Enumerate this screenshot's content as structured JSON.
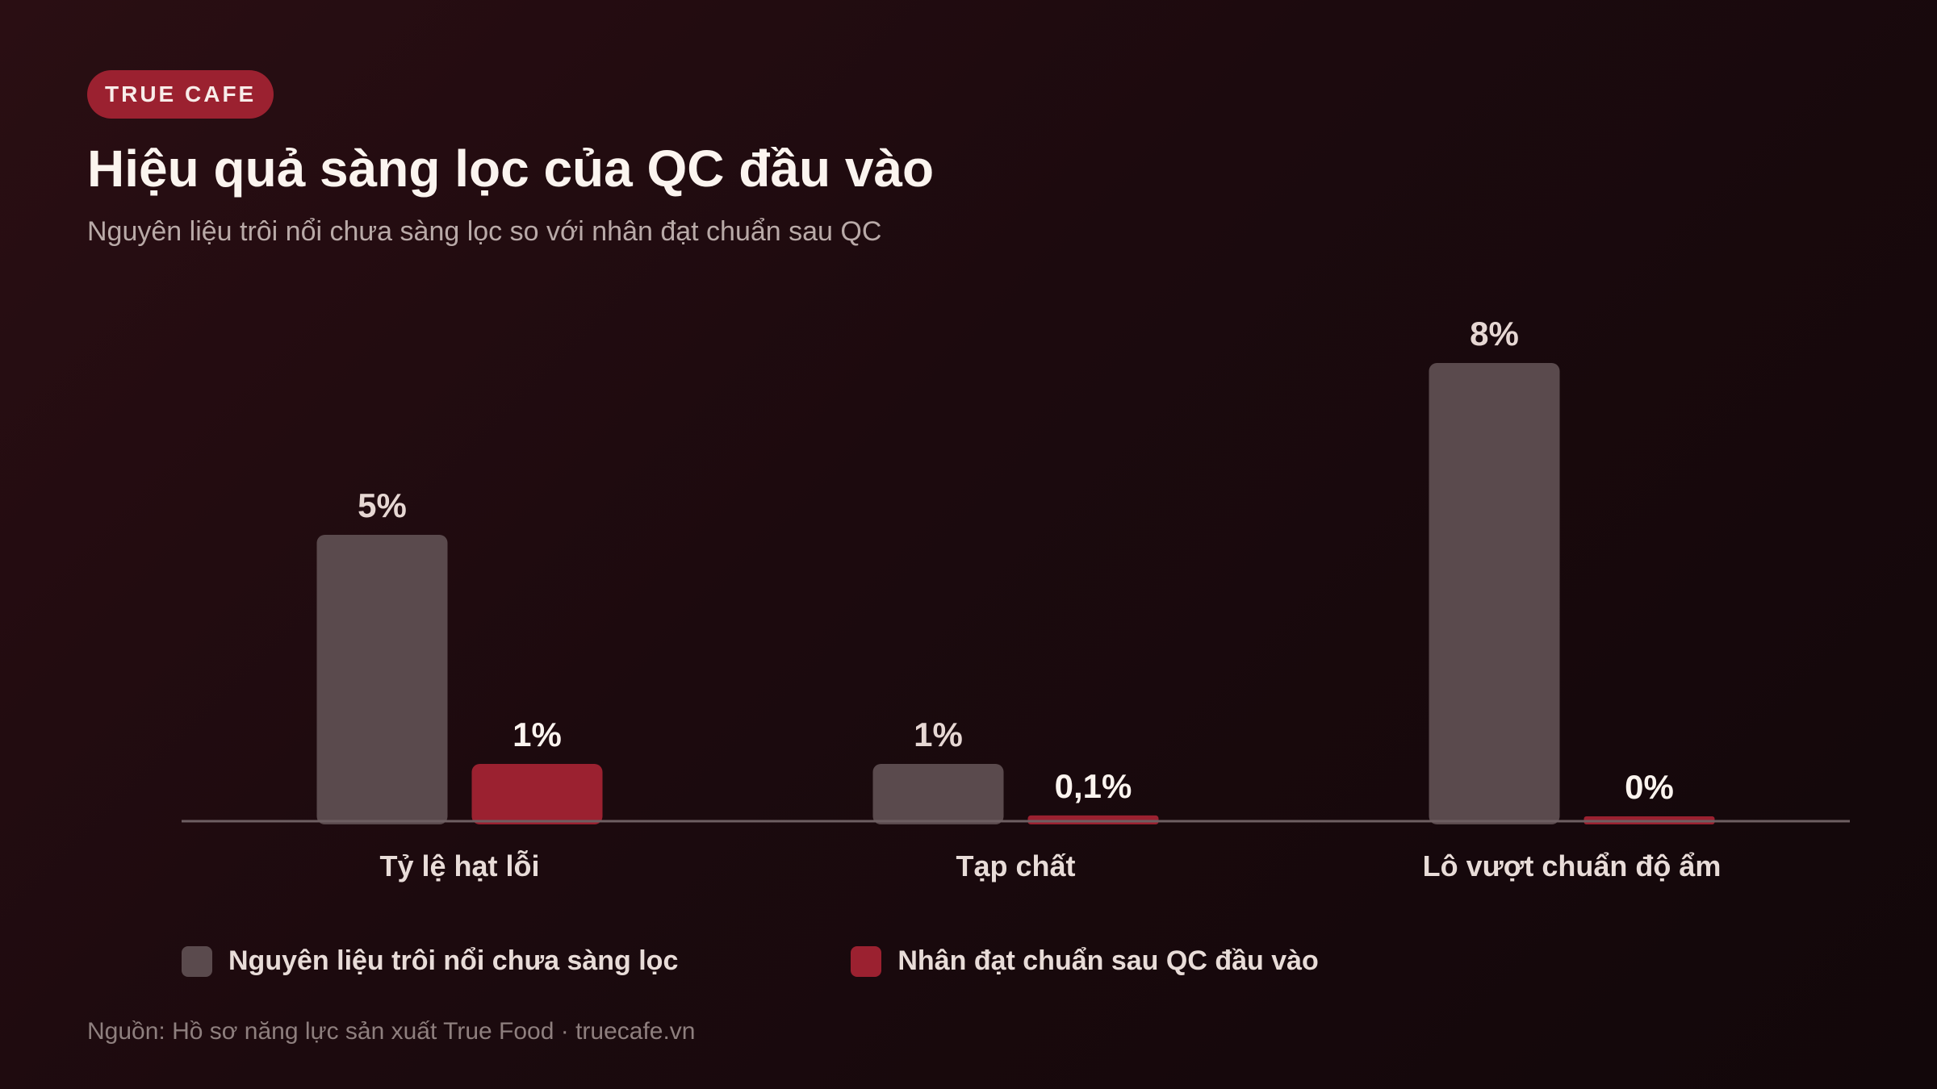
{
  "brand": {
    "badge_label": "TRUE CAFE"
  },
  "header": {
    "title": "Hiệu quả sàng lọc của QC đầu vào",
    "subtitle": "Nguyên liệu trôi nổi chưa sàng lọc so với nhân đạt chuẩn sau QC"
  },
  "colors": {
    "series_unscreened": "#5a4a4d",
    "series_qc": "#9b2130",
    "badge_bg": "#9b2130"
  },
  "chart_data": {
    "type": "bar",
    "categories": [
      "Tỷ lệ hạt lỗi",
      "Tạp chất",
      "Lô vượt chuẩn độ ẩm"
    ],
    "series": [
      {
        "name": "Nguyên liệu trôi nổi chưa sàng lọc",
        "values": [
          5,
          1,
          8
        ],
        "labels": [
          "5%",
          "1%",
          "8%"
        ]
      },
      {
        "name": "Nhân đạt chuẩn sau QC đầu vào",
        "values": [
          1,
          0.1,
          0
        ],
        "labels": [
          "1%",
          "0,1%",
          "0%"
        ]
      }
    ],
    "ylim": [
      0,
      8
    ],
    "grid": false,
    "legend_position": "bottom-left"
  },
  "footer": {
    "source": "Nguồn: Hồ sơ năng lực sản xuất True Food · truecafe.vn"
  }
}
